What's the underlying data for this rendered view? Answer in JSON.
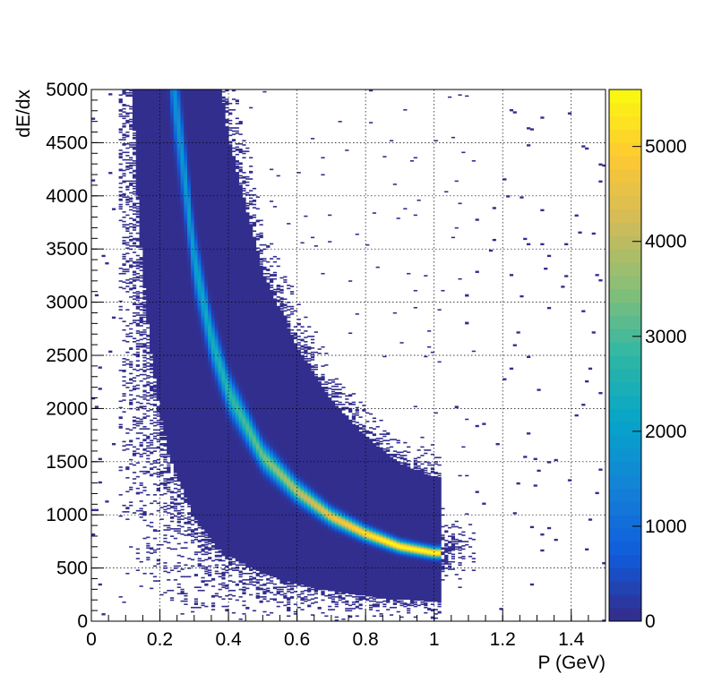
{
  "chart_data": {
    "type": "heatmap",
    "title": "",
    "xlabel": "P (GeV)",
    "ylabel": "dE/dx",
    "xlim": [
      0,
      1.5
    ],
    "ylim": [
      0,
      5000
    ],
    "x_ticks": [
      0,
      0.2,
      0.4,
      0.6,
      0.8,
      1,
      1.2,
      1.4
    ],
    "x_tick_labels": [
      "0",
      "0.2",
      "0.4",
      "0.6",
      "0.8",
      "1",
      "1.2",
      "1.4"
    ],
    "y_ticks": [
      0,
      500,
      1000,
      1500,
      2000,
      2500,
      3000,
      3500,
      4000,
      4500,
      5000
    ],
    "y_tick_labels": [
      "0",
      "500",
      "1000",
      "1500",
      "2000",
      "2500",
      "3000",
      "3500",
      "4000",
      "4500",
      "5000"
    ],
    "grid": true,
    "colorbar": {
      "range": [
        0,
        5600
      ],
      "ticks": [
        0,
        1000,
        2000,
        3000,
        4000,
        5000
      ],
      "tick_labels": [
        "0",
        "1000",
        "2000",
        "3000",
        "4000",
        "5000"
      ],
      "palette": [
        "#352a87",
        "#0f5cdd",
        "#1481d6",
        "#06a4ca",
        "#2eb7a4",
        "#87bf77",
        "#d1bb59",
        "#fec832",
        "#f9fb0e"
      ]
    },
    "band_ridge": {
      "description_points": [
        {
          "p": 0.24,
          "dedx": 5000
        },
        {
          "p": 0.26,
          "dedx": 4500
        },
        {
          "p": 0.3,
          "dedx": 3400
        },
        {
          "p": 0.35,
          "dedx": 2650
        },
        {
          "p": 0.4,
          "dedx": 2150
        },
        {
          "p": 0.5,
          "dedx": 1550
        },
        {
          "p": 0.6,
          "dedx": 1220
        },
        {
          "p": 0.7,
          "dedx": 980
        },
        {
          "p": 0.8,
          "dedx": 820
        },
        {
          "p": 0.9,
          "dedx": 700
        },
        {
          "p": 1.0,
          "dedx": 640
        }
      ],
      "peak_counts": 5600
    }
  }
}
